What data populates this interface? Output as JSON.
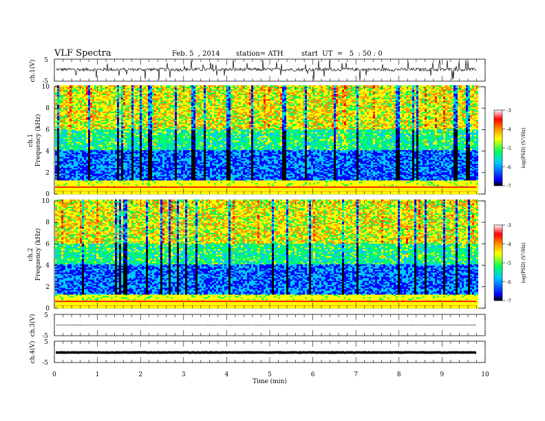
{
  "header": {
    "title": "VLF  Spectra",
    "date": "Feb. 5  , 2014",
    "station": "station= ATH",
    "start": "start  UT  =   5  : 50 : 0"
  },
  "chart_data": [
    {
      "type": "line",
      "name": "ch1-waveform",
      "ylabel": "ch.1(V)",
      "ylim": [
        -5,
        5
      ],
      "yticks": [
        "5",
        "-5"
      ],
      "xlim": [
        0,
        10
      ],
      "approx_level": 0.3,
      "approx_noise_amplitude": 1.5
    },
    {
      "type": "heatmap",
      "name": "ch1-spectrogram",
      "ylabel": [
        "ch.1",
        "Frequency  (kHz)"
      ],
      "ylim": [
        0,
        10
      ],
      "yticks": [
        "0",
        "2",
        "4",
        "6",
        "8",
        "10"
      ],
      "xlim": [
        0,
        9.8
      ],
      "colorbar": {
        "label": "log(PSD) (V²/Hz)",
        "range": [
          -7,
          -3
        ],
        "ticks": [
          "-3",
          "-4",
          "-5",
          "-6",
          "-7"
        ],
        "colors": [
          "#000000",
          "#0000ff",
          "#00c8ff",
          "#00ff60",
          "#ffff00",
          "#ff9000",
          "#ff0000",
          "#ffffff"
        ]
      }
    },
    {
      "type": "heatmap",
      "name": "ch2-spectrogram",
      "ylabel": [
        "ch.2",
        "Frequency  (kHz)"
      ],
      "ylim": [
        0,
        10
      ],
      "yticks": [
        "0",
        "2",
        "4",
        "6",
        "8",
        "10"
      ],
      "xlim": [
        0,
        9.8
      ],
      "colorbar": {
        "label": "log(PSD) (V²/Hz)",
        "range": [
          -7,
          -3
        ],
        "ticks": [
          "-3",
          "-4",
          "-5",
          "-6",
          "-7"
        ]
      }
    },
    {
      "type": "line",
      "name": "ch3-waveform",
      "ylabel": "ch.3(V)",
      "ylim": [
        -5,
        5
      ],
      "yticks": [
        "5",
        "-5"
      ],
      "approx_level": 0
    },
    {
      "type": "line",
      "name": "ch4-waveform",
      "ylabel": "ch.4(V)",
      "ylim": [
        -5,
        5
      ],
      "yticks": [
        "5",
        "-5"
      ],
      "approx_level": -0.3
    }
  ],
  "xaxis": {
    "label": "Time  (min)",
    "ticks": [
      "0",
      "1",
      "2",
      "3",
      "4",
      "5",
      "6",
      "7",
      "8",
      "9",
      "10"
    ]
  }
}
